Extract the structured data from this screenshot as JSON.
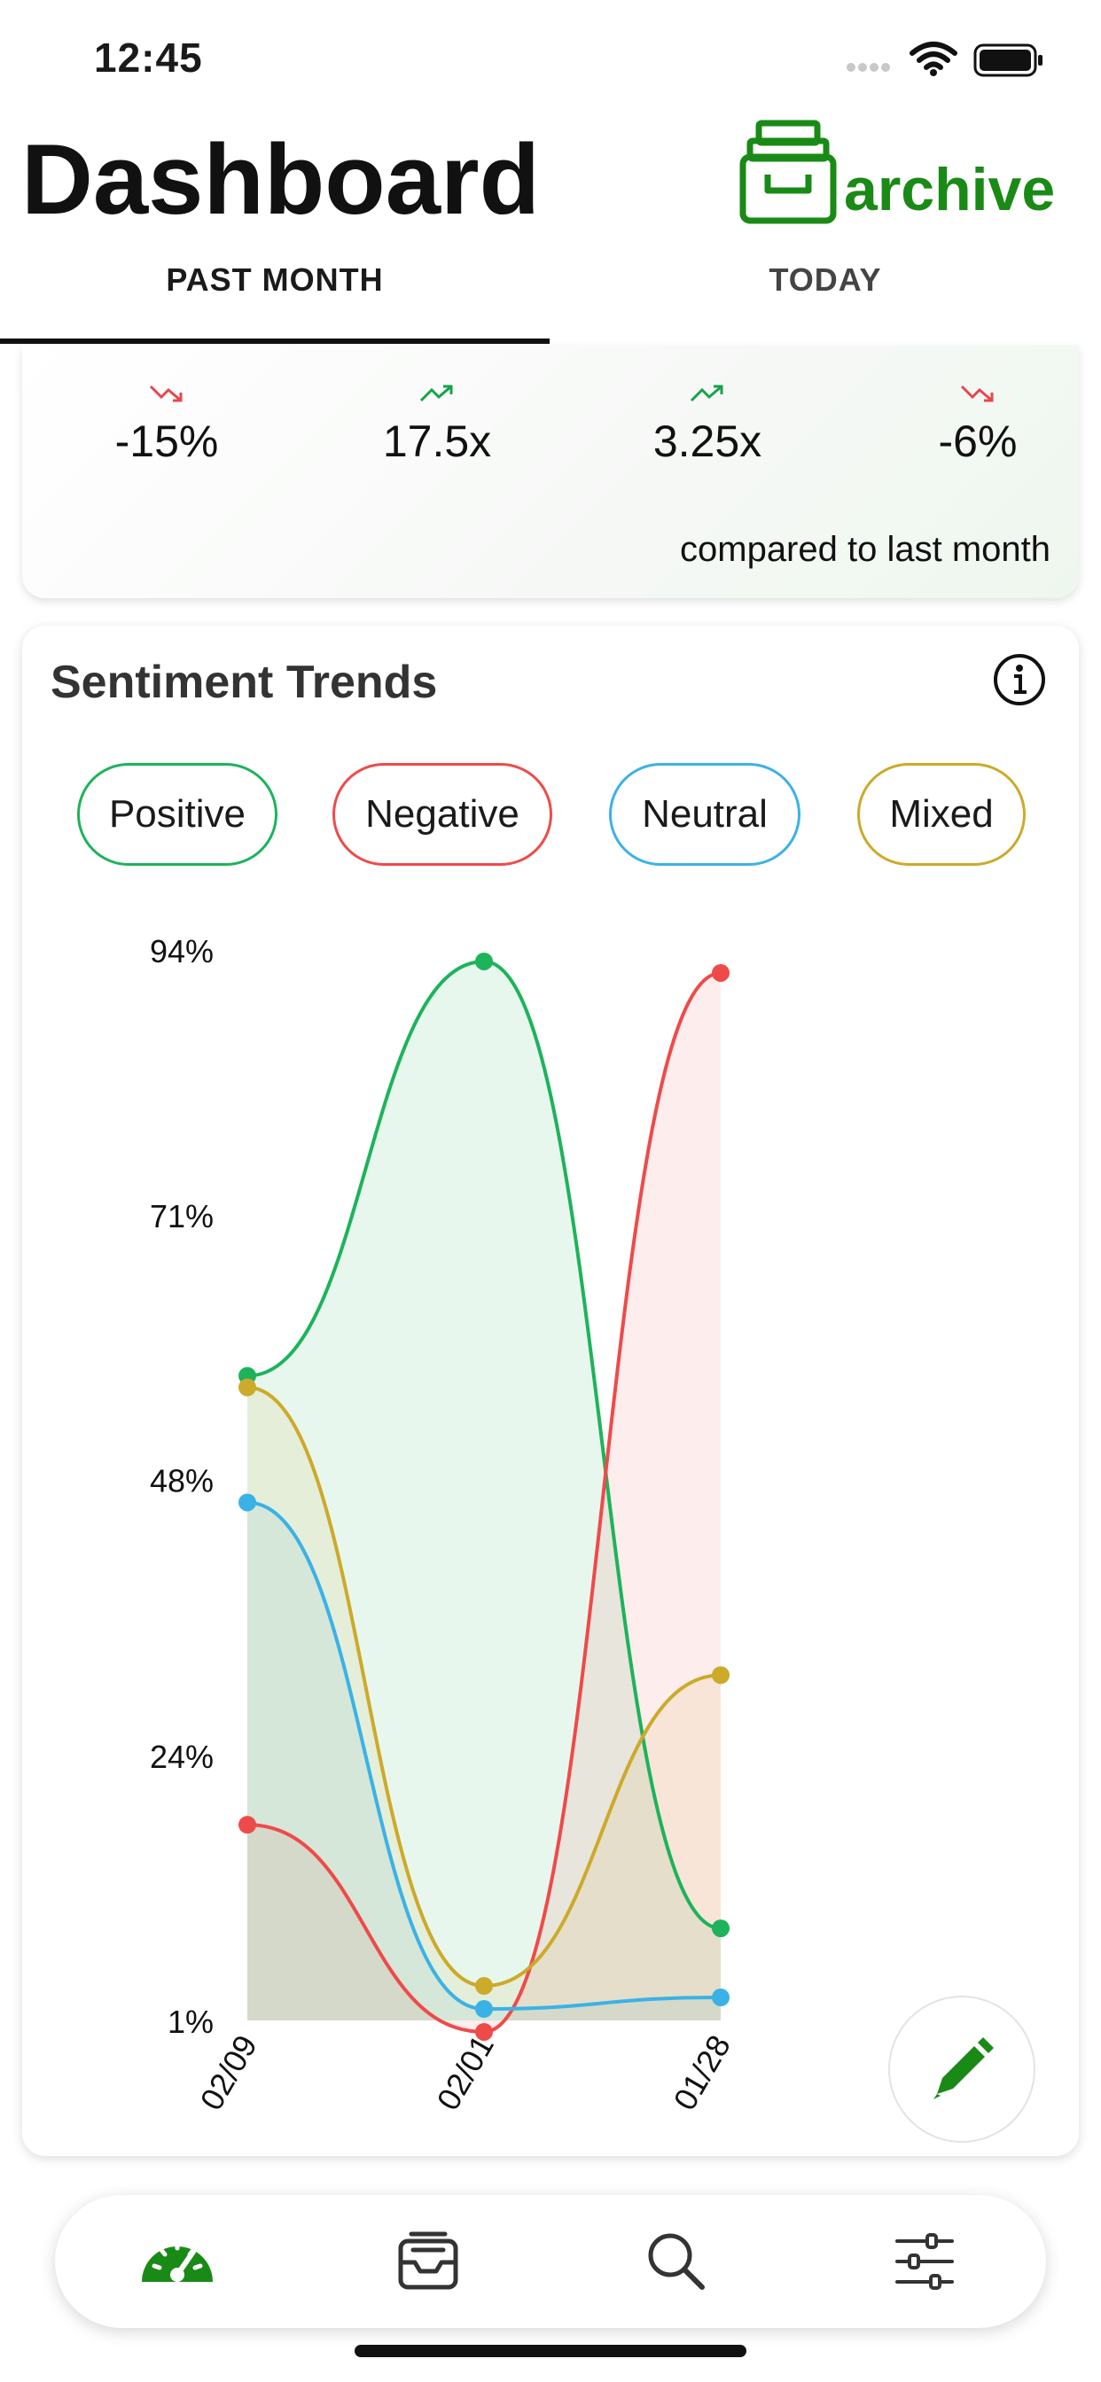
{
  "status_bar": {
    "time": "12:45"
  },
  "header": {
    "title": "Dashboard",
    "logo_text": "archive"
  },
  "tabs": [
    {
      "label": "PAST MONTH",
      "active": true
    },
    {
      "label": "TODAY",
      "active": false
    }
  ],
  "stats": {
    "items": [
      {
        "value": "-15%",
        "trend": "down",
        "color": "#e5484d"
      },
      {
        "value": "17.5x",
        "trend": "up",
        "color": "#16a34a"
      },
      {
        "value": "3.25x",
        "trend": "up",
        "color": "#16a34a"
      },
      {
        "value": "-6%",
        "trend": "down",
        "color": "#e5484d"
      }
    ],
    "note": "compared to last month"
  },
  "sentiment": {
    "title": "Sentiment Trends",
    "filters": [
      {
        "label": "Positive",
        "color": "#1db35b"
      },
      {
        "label": "Negative",
        "color": "#ef4a4a"
      },
      {
        "label": "Neutral",
        "color": "#3bb2e6"
      },
      {
        "label": "Mixed",
        "color": "#ccaa2a"
      }
    ]
  },
  "chart_data": {
    "type": "area",
    "title": "Sentiment Trends",
    "xlabel": "",
    "ylabel": "",
    "categories": [
      "02/09",
      "02/01",
      "01/28"
    ],
    "y_ticks": [
      "1%",
      "24%",
      "48%",
      "71%",
      "94%"
    ],
    "y_tick_values": [
      1,
      24,
      48,
      71,
      94
    ],
    "ylim": [
      1,
      94
    ],
    "grid": false,
    "series": [
      {
        "name": "Positive",
        "color": "#1db35b",
        "values": [
          57,
          93,
          9
        ]
      },
      {
        "name": "Negative",
        "color": "#ef4a4a",
        "values": [
          18,
          0,
          92
        ]
      },
      {
        "name": "Neutral",
        "color": "#3bb2e6",
        "values": [
          46,
          2,
          3
        ]
      },
      {
        "name": "Mixed",
        "color": "#ccaa2a",
        "values": [
          56,
          4,
          31
        ]
      }
    ]
  },
  "nav": {
    "items": [
      {
        "icon": "dashboard-icon",
        "active": true
      },
      {
        "icon": "inbox-icon",
        "active": false
      },
      {
        "icon": "search-icon",
        "active": false
      },
      {
        "icon": "settings-sliders-icon",
        "active": false
      }
    ]
  }
}
